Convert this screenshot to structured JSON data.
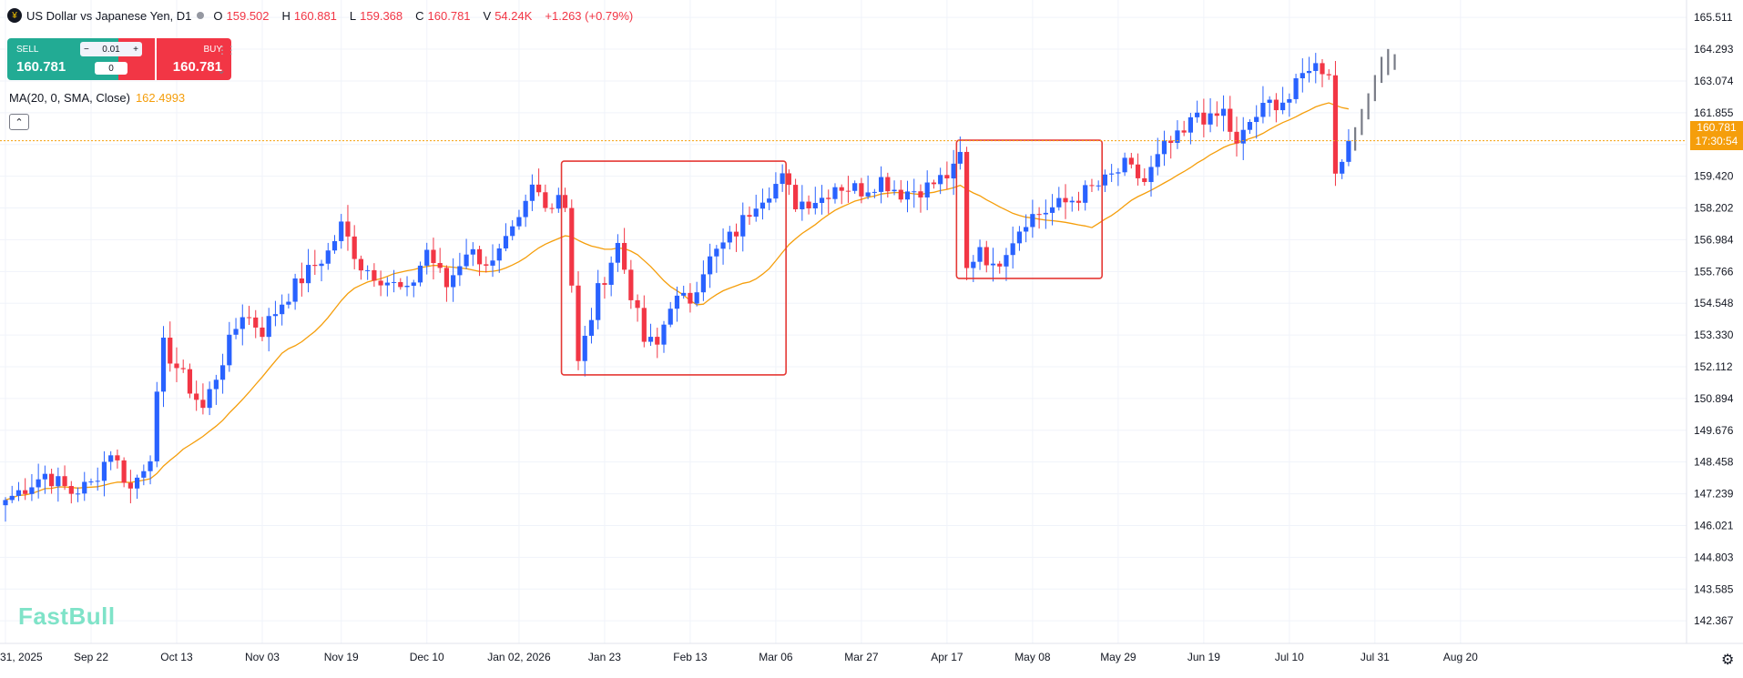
{
  "header": {
    "title": "US Dollar vs Japanese Yen, D1",
    "ohlc": [
      {
        "key": "O",
        "value": "159.502"
      },
      {
        "key": "H",
        "value": "160.881"
      },
      {
        "key": "L",
        "value": "159.368"
      },
      {
        "key": "C",
        "value": "160.781"
      },
      {
        "key": "V",
        "value": "54.24K"
      }
    ],
    "change": "+1.263 (+0.79%)"
  },
  "trade": {
    "sell_label": "SELL",
    "sell_price": "160.781",
    "buy_label": "BUY",
    "buy_price": "160.781",
    "qty": "0.01",
    "minus": "−",
    "plus": "+",
    "spread": "0"
  },
  "indicator": {
    "label": "MA(20, 0, SMA, Close)",
    "value": "162.4993"
  },
  "last_price": {
    "price": "160.781",
    "countdown": "17:30:54"
  },
  "watermark": "FastBull",
  "icons": {
    "symbol": "yen-dollar-icon",
    "status": "status-dot-icon",
    "settings": "gear-icon",
    "collapse": "chevron-up-icon",
    "menu": "chevron-down-icon",
    "drag": "drag-handle-icon"
  },
  "colors": {
    "up": "#2962ff",
    "down": "#f23645",
    "ma": "#f59e0b",
    "highlight": "#e53935",
    "grid": "#f0f3fa"
  },
  "chart_data": {
    "type": "candlestick",
    "y_ticks": [
      165.511,
      164.293,
      163.074,
      161.855,
      160.638,
      159.42,
      158.202,
      156.984,
      155.766,
      154.548,
      153.33,
      152.112,
      150.894,
      149.676,
      148.458,
      147.239,
      146.021,
      144.803,
      143.585,
      142.367
    ],
    "y_tick_labels": [
      "165.511",
      "164.293",
      "163.074",
      "161.855",
      "",
      "159.420",
      "158.202",
      "156.984",
      "155.766",
      "154.548",
      "153.330",
      "152.112",
      "150.894",
      "149.676",
      "148.458",
      "147.239",
      "146.021",
      "144.803",
      "143.585",
      "142.367"
    ],
    "ylim": [
      141.5,
      165.9
    ],
    "x_labels": [
      "31, 2025",
      "Sep 22",
      "Oct 13",
      "Nov 03",
      "Nov 19",
      "Dec 10",
      "Jan 02, 2026",
      "Jan 23",
      "Feb 13",
      "Mar 06",
      "Mar 27",
      "Apr 17",
      "May 08",
      "May 29",
      "Jun 19",
      "Jul 10",
      "Jul 31",
      "Aug 20"
    ],
    "x_label_index": [
      0,
      13,
      26,
      39,
      51,
      64,
      78,
      91,
      104,
      117,
      130,
      143,
      156,
      169,
      182,
      195,
      208,
      221
    ],
    "price_anchors": [
      [
        0,
        147.0
      ],
      [
        6,
        148.0
      ],
      [
        10,
        147.3
      ],
      [
        13,
        147.6
      ],
      [
        16,
        148.9
      ],
      [
        19,
        147.4
      ],
      [
        22,
        148.8
      ],
      [
        24,
        152.9
      ],
      [
        27,
        151.7
      ],
      [
        30,
        150.5
      ],
      [
        33,
        152.4
      ],
      [
        36,
        154.2
      ],
      [
        39,
        153.5
      ],
      [
        42,
        154.6
      ],
      [
        45,
        155.5
      ],
      [
        49,
        156.5
      ],
      [
        51,
        157.5
      ],
      [
        54,
        156.0
      ],
      [
        58,
        155.4
      ],
      [
        61,
        154.9
      ],
      [
        64,
        156.6
      ],
      [
        67,
        155.2
      ],
      [
        70,
        156.6
      ],
      [
        74,
        156.0
      ],
      [
        78,
        157.6
      ],
      [
        80,
        159.0
      ],
      [
        83,
        158.3
      ],
      [
        84,
        158.8
      ],
      [
        85,
        158.4
      ],
      [
        87,
        152.2
      ],
      [
        90,
        155.0
      ],
      [
        93,
        156.8
      ],
      [
        97,
        153.1
      ],
      [
        99,
        152.9
      ],
      [
        101,
        154.6
      ],
      [
        104,
        154.7
      ],
      [
        106,
        155.9
      ],
      [
        108,
        156.5
      ],
      [
        111,
        157.3
      ],
      [
        114,
        158.5
      ],
      [
        118,
        159.3
      ],
      [
        120,
        158.4
      ],
      [
        124,
        158.6
      ],
      [
        126,
        159.1
      ],
      [
        130,
        158.9
      ],
      [
        133,
        159.3
      ],
      [
        136,
        158.8
      ],
      [
        140,
        159.0
      ],
      [
        144,
        159.6
      ],
      [
        145,
        160.2
      ],
      [
        146,
        155.8
      ],
      [
        148,
        156.8
      ],
      [
        150,
        155.8
      ],
      [
        152,
        156.7
      ],
      [
        155,
        157.8
      ],
      [
        158,
        158.1
      ],
      [
        161,
        158.4
      ],
      [
        164,
        158.8
      ],
      [
        167,
        159.2
      ],
      [
        170,
        159.8
      ],
      [
        173,
        159.2
      ],
      [
        176,
        160.5
      ],
      [
        179,
        161.0
      ],
      [
        181,
        161.9
      ],
      [
        183,
        161.5
      ],
      [
        185,
        161.9
      ],
      [
        187,
        160.5
      ],
      [
        189,
        161.5
      ],
      [
        192,
        162.2
      ],
      [
        195,
        162.4
      ],
      [
        198,
        163.7
      ],
      [
        201,
        163.5
      ],
      [
        202,
        159.5
      ],
      [
        203,
        160.1
      ],
      [
        204,
        160.781
      ]
    ],
    "ghost_bars": [
      [
        205,
        161.3,
        160.4
      ],
      [
        206,
        162.0,
        161.0
      ],
      [
        207,
        162.6,
        161.6
      ],
      [
        208,
        163.3,
        162.3
      ],
      [
        209,
        164.0,
        163.0
      ],
      [
        210,
        164.3,
        163.3
      ],
      [
        211,
        164.1,
        163.5
      ]
    ],
    "ma_series": {
      "name": "MA(20, 0, SMA, Close)",
      "period": 20
    },
    "annotations": [
      {
        "type": "rectangle",
        "from_index": 85,
        "to_index": 118,
        "y_top": 160.0,
        "y_bottom": 151.8
      },
      {
        "type": "rectangle",
        "from_index": 145,
        "to_index": 166,
        "y_top": 160.8,
        "y_bottom": 155.5
      }
    ],
    "last_price_line": 160.781,
    "grid": true
  }
}
